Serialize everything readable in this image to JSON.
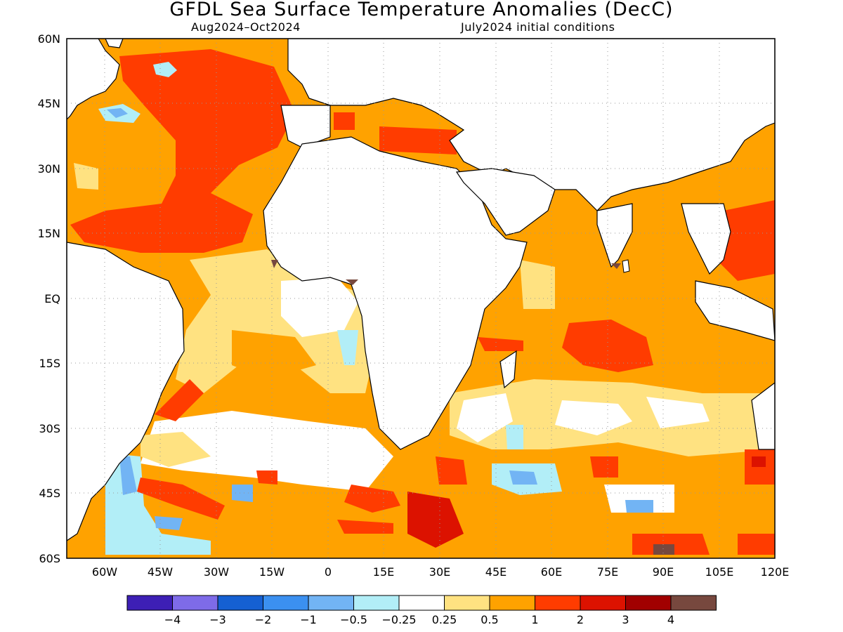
{
  "title": "GFDL Sea Surface Temperature Anomalies (DecC)",
  "subtitle_left": "Aug2024–Oct2024",
  "subtitle_right": "July2024 initial conditions",
  "map": {
    "lon_range": [
      -70,
      120
    ],
    "lat_range": [
      -60,
      60
    ],
    "grid": "dotted",
    "lat_labels": [
      "60N",
      "45N",
      "30N",
      "15N",
      "EQ",
      "15S",
      "30S",
      "45S",
      "60S"
    ],
    "lon_labels": [
      "60W",
      "45W",
      "30W",
      "15W",
      "0",
      "15E",
      "30E",
      "45E",
      "60E",
      "75E",
      "90E",
      "105E",
      "120E"
    ]
  },
  "colorbar": {
    "colors": [
      "#3d1fb5",
      "#7e6be8",
      "#1560d2",
      "#3b90f0",
      "#72b4f4",
      "#b2eef7",
      "#ffffff",
      "#ffe281",
      "#ffa200",
      "#ff3c00",
      "#dc1200",
      "#a10000",
      "#77483e"
    ],
    "labels": [
      "−4",
      "−3",
      "−2",
      "−1",
      "−0.5",
      "−0.25",
      "0.25",
      "0.5",
      "1",
      "2",
      "3",
      "4"
    ]
  },
  "colors": {
    "orange": "#ffa200",
    "light_yellow": "#ffe281",
    "red": "#ff3c00",
    "dark_red": "#dc1200",
    "light_cyan": "#b2eef7",
    "light_blue": "#72b4f4",
    "blue": "#3b90f0",
    "brown": "#77483e",
    "land": "#ffffff"
  }
}
